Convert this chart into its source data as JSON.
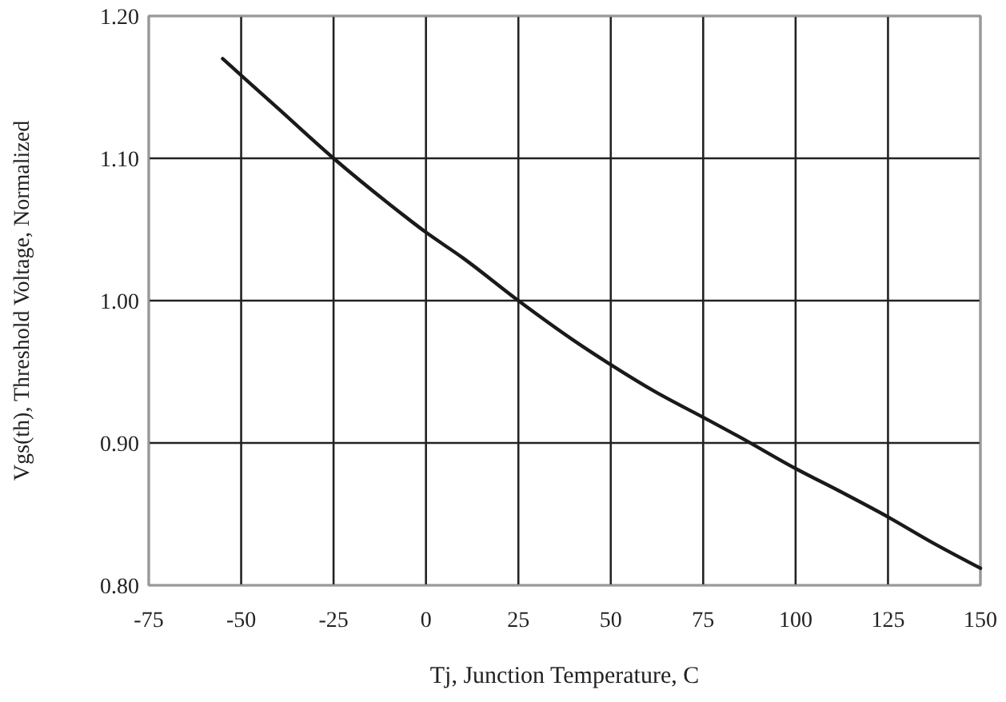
{
  "chart_data": {
    "type": "line",
    "xlabel": "Tj, Junction Temperature, C",
    "ylabel": "Vgs(th), Threshold Voltage, Normalized",
    "x": [
      -55,
      -40,
      -25,
      -10,
      0,
      10,
      25,
      40,
      50,
      62,
      75,
      85,
      100,
      112,
      125,
      137,
      150
    ],
    "series": [
      {
        "color": "#1a1a1a",
        "values": [
          1.17,
          1.135,
          1.1,
          1.068,
          1.048,
          1.03,
          1.0,
          0.972,
          0.955,
          0.936,
          0.918,
          0.904,
          0.882,
          0.866,
          0.848,
          0.83,
          0.812
        ]
      }
    ],
    "xlim": [
      -75,
      150
    ],
    "xticks": [
      -75,
      -50,
      -25,
      0,
      25,
      50,
      75,
      100,
      125,
      150
    ],
    "ylim": [
      0.8,
      1.2
    ],
    "yticks": [
      {
        "value": 0.8,
        "label": "0.80"
      },
      {
        "value": 0.9,
        "label": "0.90"
      },
      {
        "value": 1.0,
        "label": "1.00"
      },
      {
        "value": 1.1,
        "label": "1.10"
      },
      {
        "value": 1.2,
        "label": "1.20"
      }
    ],
    "grid": true,
    "marker": "none",
    "line_style": "solid"
  }
}
